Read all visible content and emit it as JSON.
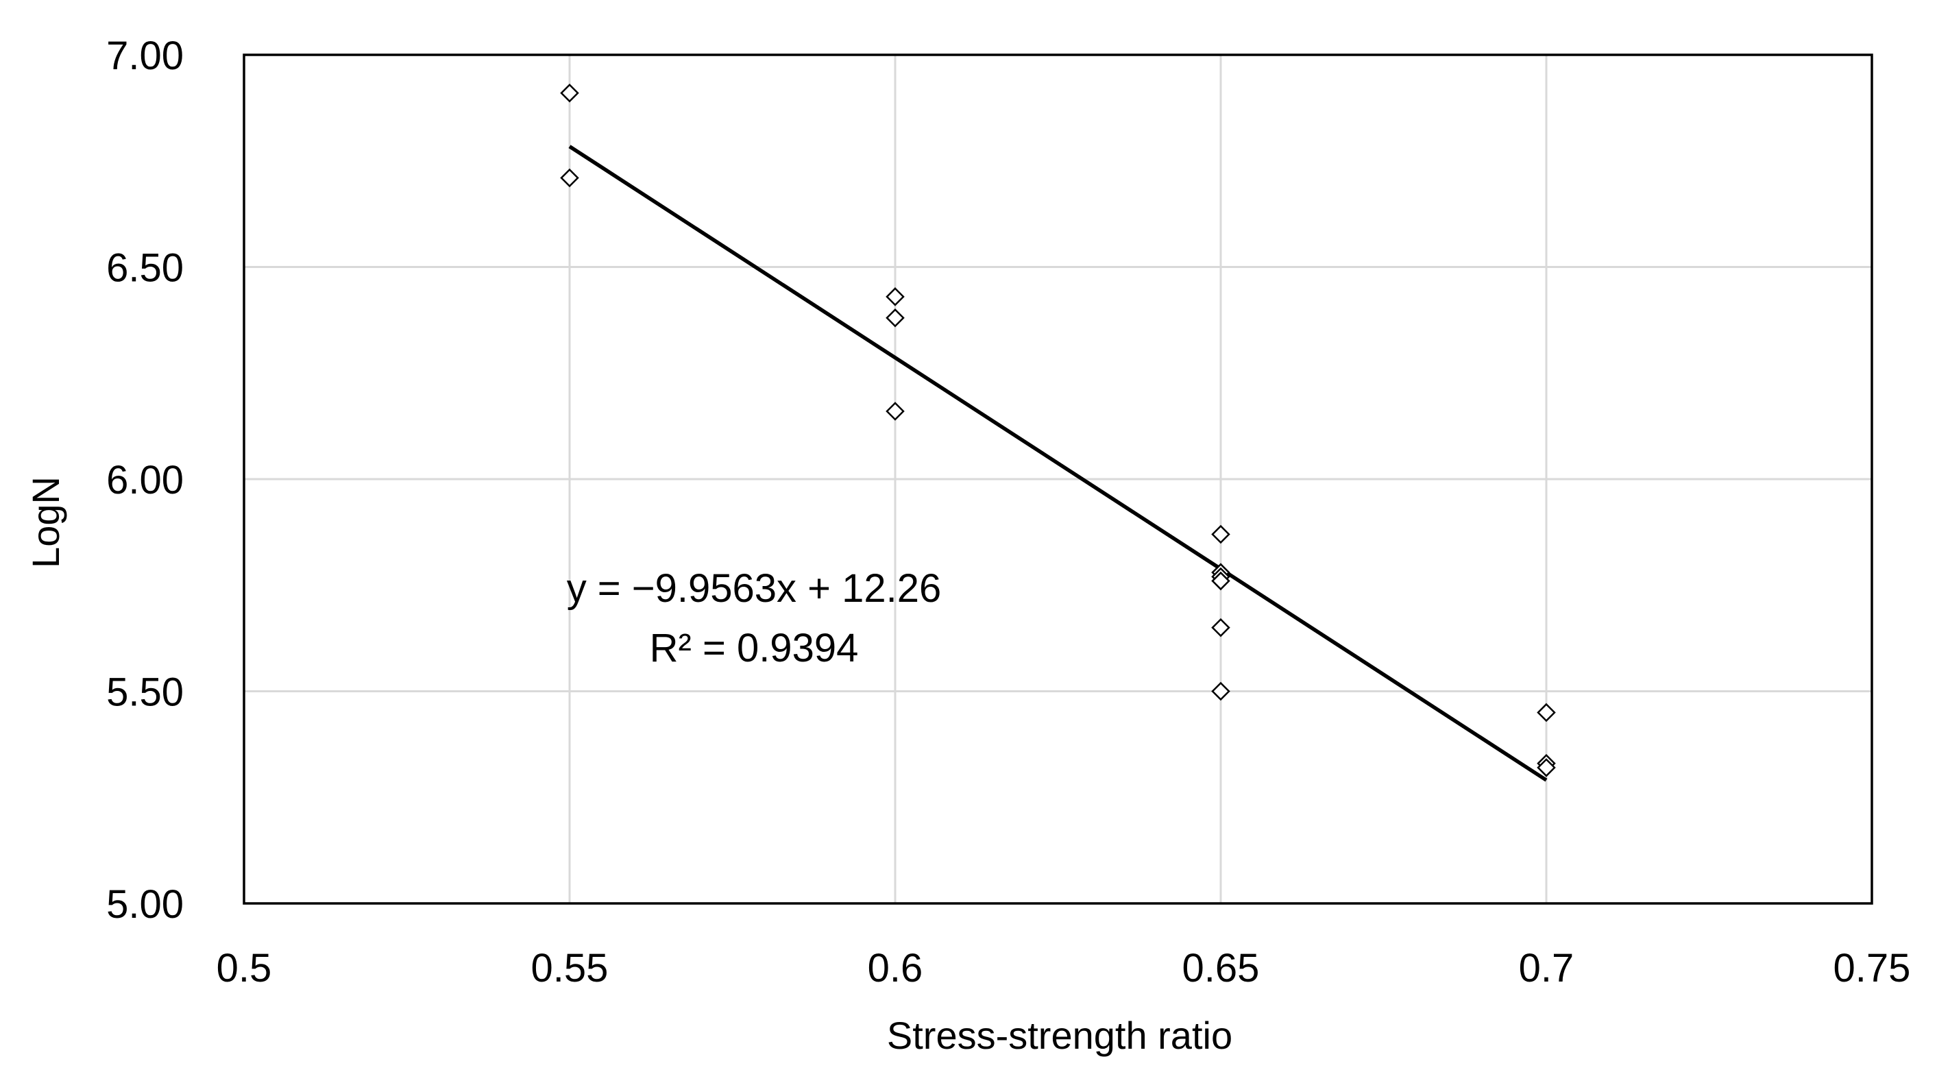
{
  "chart_data": {
    "type": "scatter",
    "xlabel": "Stress-strength ratio",
    "ylabel": "LogN",
    "xlim": [
      0.5,
      0.75
    ],
    "ylim": [
      5.0,
      7.0
    ],
    "x_ticks": [
      0.5,
      0.55,
      0.6,
      0.65,
      0.7,
      0.75
    ],
    "x_tick_labels": [
      "0.5",
      "0.55",
      "0.6",
      "0.65",
      "0.7",
      "0.75"
    ],
    "y_ticks": [
      5.0,
      5.5,
      6.0,
      6.5,
      7.0
    ],
    "y_tick_labels": [
      "5.00",
      "5.50",
      "6.00",
      "6.50",
      "7.00"
    ],
    "grid": true,
    "legend": "none",
    "marker": "diamond-open",
    "points": [
      {
        "x": 0.55,
        "y": 6.91
      },
      {
        "x": 0.55,
        "y": 6.71
      },
      {
        "x": 0.6,
        "y": 6.43
      },
      {
        "x": 0.6,
        "y": 6.38
      },
      {
        "x": 0.6,
        "y": 6.16
      },
      {
        "x": 0.65,
        "y": 5.87
      },
      {
        "x": 0.65,
        "y": 5.78
      },
      {
        "x": 0.65,
        "y": 5.77
      },
      {
        "x": 0.65,
        "y": 5.76
      },
      {
        "x": 0.65,
        "y": 5.65
      },
      {
        "x": 0.65,
        "y": 5.5
      },
      {
        "x": 0.7,
        "y": 5.45
      },
      {
        "x": 0.7,
        "y": 5.33
      },
      {
        "x": 0.7,
        "y": 5.32
      }
    ],
    "trendline": {
      "type": "linear",
      "slope": -9.9563,
      "intercept": 12.26,
      "x_range": [
        0.55,
        0.7
      ],
      "equation_label": "y = −9.9563x + 12.26",
      "r2_label": "R² = 0.9394"
    },
    "colors": {
      "axis": "#000000",
      "grid": "#d9d9d9",
      "marker": "#000000",
      "trendline": "#000000"
    }
  }
}
